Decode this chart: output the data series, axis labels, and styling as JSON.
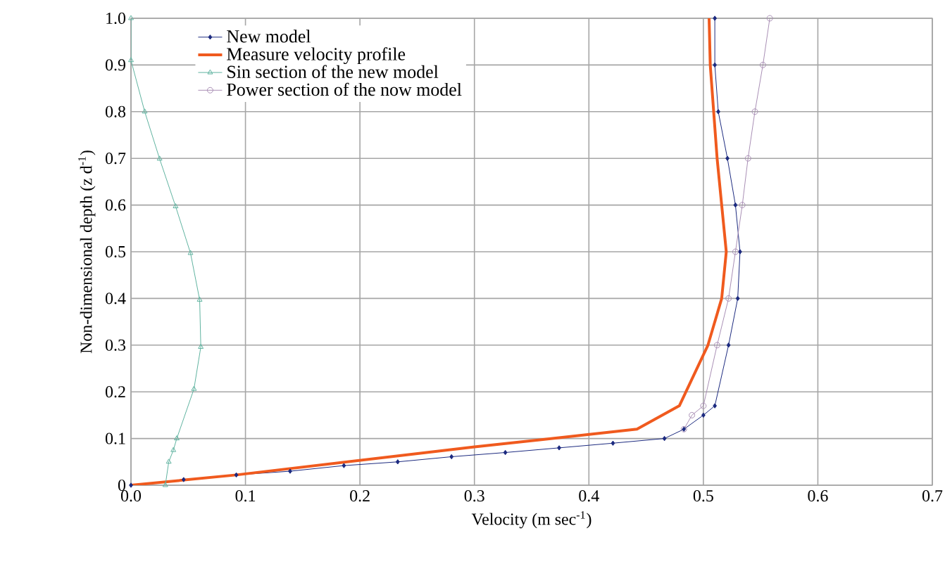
{
  "chart_data": {
    "type": "line",
    "xlabel": "Velocity (m sec$^{-1}$)",
    "ylabel": "Non-dimensional depth (z d$^{-1}$)",
    "xlim": [
      0,
      0.7
    ],
    "ylim": [
      0,
      1
    ],
    "xticks": [
      {
        "value": 0,
        "label": "0.0"
      },
      0.1,
      0.2,
      0.3,
      0.4,
      0.5,
      0.6,
      0.7
    ],
    "yticks": [
      0,
      0.1,
      0.2,
      0.3,
      0.4,
      0.5,
      0.6,
      0.7,
      0.8,
      0.9,
      {
        "value": 1,
        "label": "1.0"
      }
    ],
    "grid": true,
    "legend": "top left",
    "series": [
      {
        "name": "New model",
        "color": "#1c2a80",
        "marker": "diamond",
        "x": [
          0,
          0.046,
          0.092,
          0.139,
          0.186,
          0.233,
          0.28,
          0.327,
          0.374,
          0.421,
          0.466,
          0.483,
          0.5,
          0.51,
          0.522,
          0.53,
          0.532,
          0.528,
          0.521,
          0.513,
          0.51,
          0.51
        ],
        "values": [
          0,
          0.012,
          0.022,
          0.03,
          0.042,
          0.05,
          0.061,
          0.07,
          0.08,
          0.09,
          0.1,
          0.12,
          0.15,
          0.17,
          0.3,
          0.4,
          0.5,
          0.6,
          0.7,
          0.8,
          0.9,
          1.0
        ]
      },
      {
        "name": "Measure velocity profile",
        "color": "#f05a1e",
        "marker": "none",
        "x": [
          0,
          0.092,
          0.3,
          0.442,
          0.479,
          0.504,
          0.516,
          0.52,
          0.516,
          0.512,
          0.509,
          0.506,
          0.505
        ],
        "values": [
          0,
          0.022,
          0.082,
          0.12,
          0.17,
          0.3,
          0.4,
          0.5,
          0.6,
          0.7,
          0.8,
          0.9,
          1.0
        ]
      },
      {
        "name": "Sin section of the new model",
        "color": "#5fb3a0",
        "marker": "triangle",
        "x": [
          0.03,
          0.033,
          0.037,
          0.04,
          0.055,
          0.061,
          0.06,
          0.052,
          0.039,
          0.025,
          0.012,
          0.0,
          0.0
        ],
        "values": [
          0,
          0.05,
          0.075,
          0.1,
          0.206,
          0.296,
          0.397,
          0.497,
          0.597,
          0.699,
          0.8,
          0.91,
          1.0
        ]
      },
      {
        "name": "Power section of the now model",
        "color": "#a98fb5",
        "marker": "circle",
        "x": [
          0.483,
          0.49,
          0.5,
          0.512,
          0.522,
          0.528,
          0.534,
          0.539,
          0.545,
          0.552,
          0.558
        ],
        "values": [
          0.12,
          0.15,
          0.17,
          0.3,
          0.4,
          0.5,
          0.6,
          0.7,
          0.8,
          0.9,
          1.0
        ]
      }
    ]
  }
}
